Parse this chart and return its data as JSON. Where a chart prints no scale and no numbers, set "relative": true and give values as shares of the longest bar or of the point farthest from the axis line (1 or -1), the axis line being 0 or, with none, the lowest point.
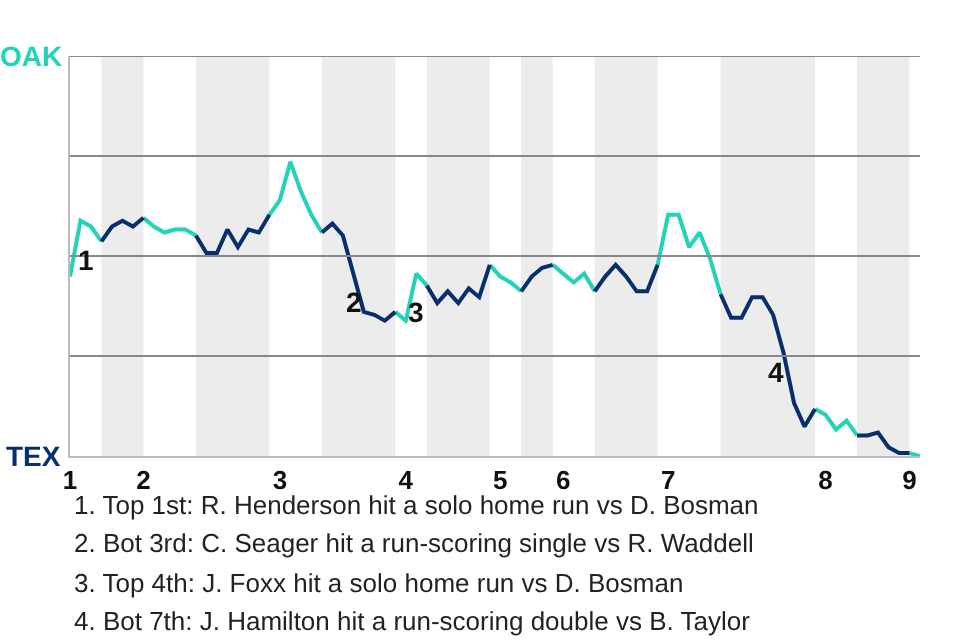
{
  "chart_data": {
    "type": "line",
    "relative": true,
    "categories": [
      "1",
      null,
      null,
      null,
      null,
      null,
      null,
      "2",
      null,
      null,
      null,
      null,
      null,
      null,
      null,
      null,
      null,
      null,
      null,
      null,
      "3",
      null,
      null,
      null,
      null,
      null,
      null,
      null,
      null,
      null,
      null,
      null,
      "4",
      null,
      null,
      null,
      null,
      null,
      null,
      null,
      null,
      "5",
      null,
      null,
      null,
      null,
      null,
      "6",
      null,
      null,
      null,
      null,
      null,
      null,
      null,
      null,
      null,
      "7",
      null,
      null,
      null,
      null,
      null,
      null,
      null,
      null,
      null,
      null,
      null,
      null,
      null,
      null,
      "8",
      null,
      null,
      null,
      null,
      null,
      null,
      null,
      "9",
      null
    ],
    "series": [
      {
        "color": "#22d3b6",
        "values": [
          0.61,
          0.8,
          0.78,
          0.73,
          null,
          null,
          null,
          0.81,
          0.78,
          0.76,
          0.77,
          0.77,
          0.75,
          null,
          null,
          null,
          null,
          null,
          null,
          0.82,
          0.87,
          1,
          0.9,
          0.82,
          0.76,
          null,
          null,
          null,
          null,
          null,
          null,
          0.49,
          0.46,
          0.62,
          0.58,
          null,
          null,
          null,
          null,
          null,
          0.65,
          0.61,
          0.59,
          0.56,
          null,
          null,
          0.65,
          0.62,
          0.59,
          0.62,
          0.56,
          null,
          null,
          null,
          null,
          null,
          0.65,
          0.82,
          0.82,
          0.71,
          0.76,
          0.67,
          0.55,
          null,
          null,
          null,
          null,
          null,
          null,
          null,
          null,
          0.16,
          0.14,
          0.09,
          0.12,
          0.07,
          null,
          null,
          null,
          null,
          0.01,
          0
        ]
      },
      {
        "color": "#062f6b",
        "values": [
          null,
          null,
          null,
          0.73,
          0.78,
          0.8,
          0.78,
          0.81,
          null,
          null,
          null,
          null,
          0.75,
          0.69,
          0.69,
          0.77,
          0.71,
          0.77,
          0.76,
          0.82,
          null,
          null,
          null,
          null,
          0.76,
          0.79,
          0.75,
          0.62,
          0.49,
          0.48,
          0.46,
          0.49,
          null,
          null,
          0.58,
          0.52,
          0.56,
          0.52,
          0.57,
          0.54,
          0.65,
          null,
          null,
          0.56,
          0.61,
          0.64,
          0.65,
          null,
          null,
          null,
          0.56,
          0.61,
          0.65,
          0.61,
          0.56,
          0.56,
          0.65,
          null,
          null,
          null,
          null,
          null,
          0.55,
          0.47,
          0.47,
          0.54,
          0.54,
          0.48,
          0.35,
          0.18,
          0.1,
          0.16,
          null,
          null,
          null,
          0.07,
          0.07,
          0.08,
          0.03,
          0.01,
          0.01,
          null
        ]
      }
    ],
    "marker": "none",
    "line_style": "solid",
    "ref_lines": [
      {
        "axis": "y",
        "value": 0.34,
        "color": "#888888"
      },
      {
        "axis": "y",
        "value": 0.68,
        "color": "#888888"
      },
      {
        "axis": "y",
        "value": 1.02,
        "color": "#888888"
      },
      {
        "axis": "y",
        "value": 1.36,
        "color": "#888888"
      }
    ],
    "annotations": [
      "OAK",
      "TEX",
      "1",
      "2",
      "3",
      "4",
      "1. Top 1st: R. Henderson hit a solo home run vs D. Bosman",
      "2. Bot 3rd: C. Seager hit a run-scoring single vs R. Waddell",
      "3. Top 4th: J. Foxx hit a solo home run vs D. Bosman",
      "4. Bot 7th: J. Hamilton hit a run-scoring double vs B. Taylor"
    ]
  }
}
